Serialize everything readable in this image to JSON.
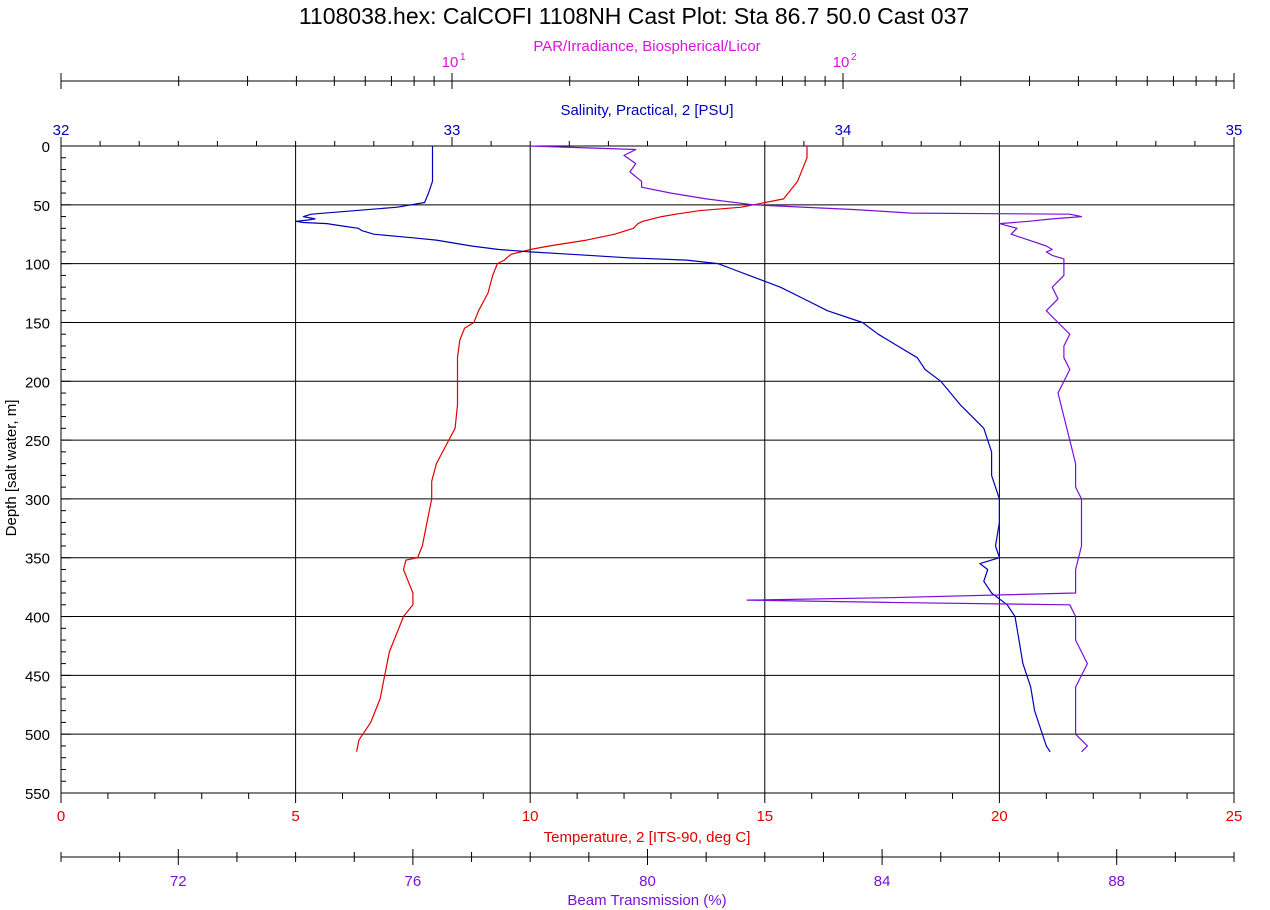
{
  "chart_data": {
    "type": "line",
    "title": "1108038.hex: CalCOFI 1108NH Cast Plot: Sta 86.7 50.0  Cast 037",
    "ylabel": "Depth [salt water, m]",
    "ylim": [
      0,
      550
    ],
    "y_ticks": [
      "0",
      "50",
      "100",
      "150",
      "200",
      "250",
      "300",
      "350",
      "400",
      "450",
      "500",
      "550"
    ],
    "grid": true,
    "axes": {
      "par": {
        "label": "PAR/Irradiance, Biospherical/Licor",
        "scale": "log",
        "range": [
          1,
          1000
        ],
        "tick_base": "10",
        "tick_exponents": [
          "1",
          "2"
        ],
        "color": "#e010e0"
      },
      "salinity": {
        "label": "Salinity, Practical, 2 [PSU]",
        "range": [
          32,
          35
        ],
        "ticks": [
          "32",
          "33",
          "34",
          "35"
        ],
        "color": "#0000b8"
      },
      "temperature": {
        "label": "Temperature, 2 [ITS-90, deg C]",
        "range": [
          0,
          25
        ],
        "ticks": [
          "0",
          "5",
          "10",
          "15",
          "20",
          "25"
        ],
        "color": "#e00000"
      },
      "transmission": {
        "label": "Beam Transmission (%)",
        "range": [
          70,
          90
        ],
        "ticks": [
          "72",
          "76",
          "80",
          "84",
          "88"
        ],
        "color": "#7a10d8"
      }
    },
    "series": [
      {
        "axis": "temperature",
        "color": "#e00000",
        "depth": [
          0,
          10,
          30,
          45,
          52,
          55,
          58,
          60,
          62,
          64,
          66,
          70,
          75,
          80,
          85,
          88,
          90,
          92,
          95,
          97,
          100,
          110,
          125,
          140,
          150,
          155,
          165,
          180,
          200,
          220,
          240,
          255,
          270,
          285,
          300,
          320,
          340,
          350,
          352,
          360,
          370,
          380,
          390,
          400,
          410,
          430,
          450,
          470,
          490,
          505,
          515
        ],
        "values": [
          15.9,
          15.9,
          15.7,
          15.4,
          14.5,
          13.6,
          13.1,
          12.8,
          12.6,
          12.4,
          12.3,
          12.2,
          11.8,
          11.2,
          10.4,
          10.0,
          9.8,
          9.6,
          9.5,
          9.45,
          9.3,
          9.2,
          9.1,
          8.9,
          8.8,
          8.6,
          8.5,
          8.45,
          8.45,
          8.45,
          8.4,
          8.2,
          8.0,
          7.9,
          7.9,
          7.8,
          7.7,
          7.6,
          7.35,
          7.3,
          7.4,
          7.5,
          7.5,
          7.3,
          7.2,
          7.0,
          6.9,
          6.8,
          6.6,
          6.35,
          6.3
        ]
      },
      {
        "axis": "salinity",
        "color": "#0000b8",
        "depth": [
          0,
          10,
          20,
          30,
          40,
          48,
          52,
          55,
          58,
          60,
          62,
          63,
          64,
          65,
          66,
          68,
          70,
          72,
          75,
          78,
          80,
          85,
          88,
          90,
          92,
          95,
          97,
          100,
          105,
          110,
          120,
          130,
          140,
          150,
          160,
          170,
          180,
          190,
          200,
          220,
          240,
          260,
          280,
          300,
          320,
          340,
          350,
          355,
          360,
          370,
          380,
          390,
          400,
          420,
          440,
          460,
          480,
          500,
          510,
          515
        ],
        "values": [
          32.95,
          32.95,
          32.95,
          32.95,
          32.94,
          32.93,
          32.86,
          32.75,
          32.64,
          32.62,
          32.65,
          32.63,
          32.6,
          32.62,
          32.68,
          32.72,
          32.76,
          32.77,
          32.8,
          32.9,
          32.96,
          33.05,
          33.12,
          33.2,
          33.3,
          33.45,
          33.6,
          33.68,
          33.72,
          33.76,
          33.84,
          33.9,
          33.96,
          34.05,
          34.09,
          34.14,
          34.19,
          34.21,
          34.25,
          34.3,
          34.36,
          34.38,
          34.38,
          34.4,
          34.4,
          34.39,
          34.4,
          34.35,
          34.37,
          34.36,
          34.38,
          34.42,
          34.44,
          34.45,
          34.46,
          34.48,
          34.49,
          34.51,
          34.52,
          34.53
        ]
      },
      {
        "axis": "transmission",
        "color": "#7a10d8",
        "depth": [
          0,
          3,
          8,
          15,
          22,
          30,
          35,
          40,
          45,
          50,
          54,
          57,
          58,
          59,
          60,
          62,
          64,
          66,
          70,
          75,
          80,
          85,
          88,
          90,
          93,
          96,
          100,
          110,
          120,
          130,
          140,
          150,
          160,
          170,
          180,
          190,
          200,
          210,
          230,
          250,
          270,
          290,
          300,
          320,
          340,
          360,
          380,
          384,
          386,
          388,
          390,
          400,
          420,
          440,
          460,
          480,
          500,
          510,
          515
        ],
        "values": [
          78.0,
          79.8,
          79.6,
          79.8,
          79.7,
          79.9,
          79.9,
          80.4,
          81.0,
          81.8,
          83.5,
          84.5,
          87.2,
          87.3,
          87.4,
          86.9,
          86.5,
          86.0,
          86.3,
          86.2,
          86.5,
          86.8,
          86.9,
          86.8,
          86.9,
          87.1,
          87.1,
          87.1,
          86.9,
          87.0,
          86.8,
          87.0,
          87.2,
          87.1,
          87.1,
          87.2,
          87.1,
          87.0,
          87.1,
          87.2,
          87.3,
          87.3,
          87.4,
          87.4,
          87.4,
          87.3,
          87.3,
          84.1,
          81.7,
          84.1,
          87.2,
          87.3,
          87.3,
          87.5,
          87.3,
          87.3,
          87.3,
          87.5,
          87.4
        ]
      }
    ]
  }
}
